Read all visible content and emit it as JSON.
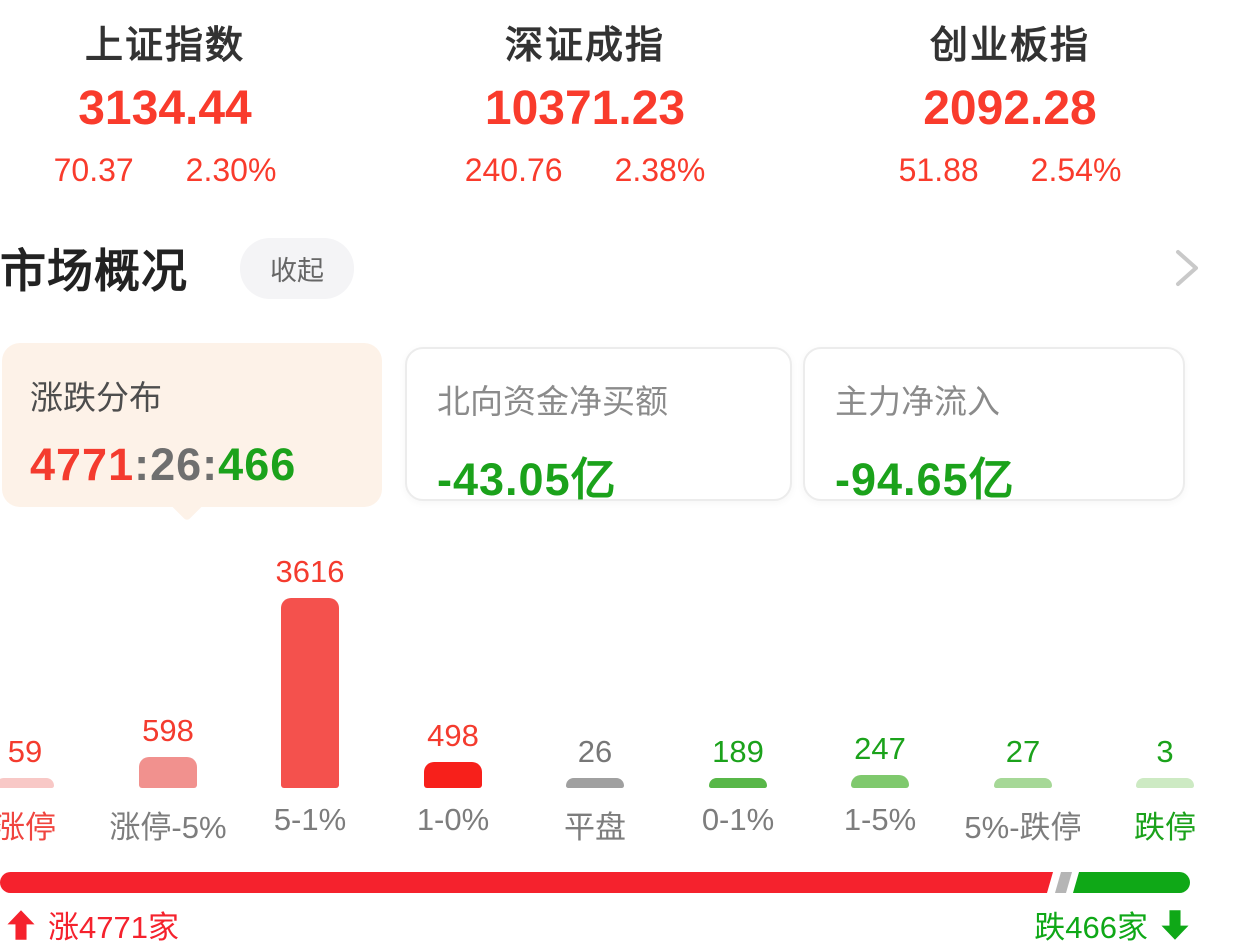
{
  "indices": [
    {
      "name": "上证指数",
      "price": "3134.44",
      "change": "70.37",
      "pct": "2.30%"
    },
    {
      "name": "深证成指",
      "price": "10371.23",
      "change": "240.76",
      "pct": "2.38%"
    },
    {
      "name": "创业板指",
      "price": "2092.28",
      "change": "51.88",
      "pct": "2.54%"
    }
  ],
  "section": {
    "title": "市场概况",
    "collapse_label": "收起"
  },
  "cards": [
    {
      "label": "涨跌分布",
      "value_parts": [
        {
          "text": "4771",
          "color": "#f43b2e"
        },
        {
          "text": ":",
          "color": "#6f6f6f"
        },
        {
          "text": "26",
          "color": "#6f6f6f"
        },
        {
          "text": ":",
          "color": "#6f6f6f"
        },
        {
          "text": "466",
          "color": "#1ba21b"
        }
      ]
    },
    {
      "label": "北向资金净买额",
      "value": "-43.05亿",
      "value_color": "#1ba21b"
    },
    {
      "label": "主力净流入",
      "value": "-94.65亿",
      "value_color": "#1ba21b"
    }
  ],
  "chart_data": {
    "type": "bar",
    "title": "涨跌分布",
    "categories": [
      "涨停",
      "涨停-5%",
      "5-1%",
      "1-0%",
      "平盘",
      "0-1%",
      "1-5%",
      "5%-跌停",
      "跌停"
    ],
    "values": [
      59,
      598,
      3616,
      498,
      26,
      189,
      247,
      27,
      3
    ],
    "bar_colors": [
      "#f8c8c6",
      "#f1918e",
      "#f4514d",
      "#f7201b",
      "#a0a0a0",
      "#58b748",
      "#7fc96d",
      "#a6d897",
      "#cdeac3"
    ],
    "value_colors": [
      "#f43b2e",
      "#f43b2e",
      "#f43b2e",
      "#f43b2e",
      "#777777",
      "#1ba21b",
      "#1ba21b",
      "#1ba21b",
      "#1ba21b"
    ],
    "label_colors": [
      "#f0453f",
      "#7d7d7d",
      "#7d7d7d",
      "#7d7d7d",
      "#7d7d7d",
      "#7d7d7d",
      "#7d7d7d",
      "#7d7d7d",
      "#1ba21b"
    ],
    "ylim": [
      0,
      3616
    ],
    "grid": false,
    "legend": "none"
  },
  "summary_bar": {
    "up_count": 4771,
    "flat_count": 26,
    "down_count": 466,
    "up_label": "涨4771家",
    "down_label": "跌466家",
    "up_color": "#f5222d",
    "down_color": "#0fa817",
    "flat_color": "#b5b5b5"
  },
  "colors": {
    "red_text": "#f93b2c",
    "green_text": "#1ba21b",
    "dark_text": "#222222",
    "selected_card_bg": "#fdf2e8"
  }
}
